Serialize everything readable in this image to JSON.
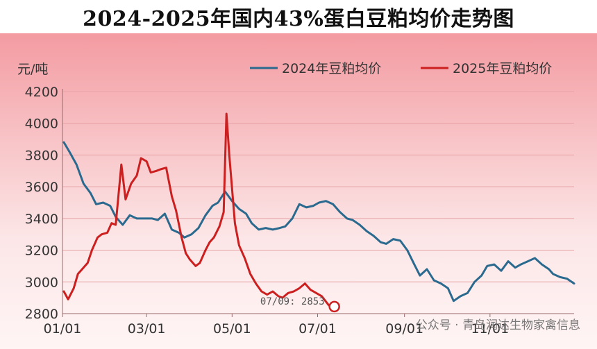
{
  "chart_data": {
    "type": "line",
    "title": "2024-2025年国内43%蛋白豆粕均价走势图",
    "ylabel": "元/吨",
    "ylim": [
      2800,
      4200
    ],
    "yticks": [
      2800,
      3000,
      3200,
      3400,
      3600,
      3800,
      4000,
      4200
    ],
    "xlabels": [
      "01/01",
      "03/01",
      "05/01",
      "07/01",
      "09/01",
      "11/01"
    ],
    "x_domain": [
      "01/01",
      "12/31"
    ],
    "grid": true,
    "legend_position": "top-right",
    "series": [
      {
        "name": "2024年豆粕均价",
        "color": "#2b6a8f",
        "points": [
          [
            "01/02",
            3880
          ],
          [
            "01/06",
            3820
          ],
          [
            "01/11",
            3740
          ],
          [
            "01/16",
            3620
          ],
          [
            "01/21",
            3560
          ],
          [
            "01/25",
            3490
          ],
          [
            "01/30",
            3500
          ],
          [
            "02/04",
            3480
          ],
          [
            "02/08",
            3410
          ],
          [
            "02/13",
            3360
          ],
          [
            "02/18",
            3420
          ],
          [
            "02/23",
            3400
          ],
          [
            "02/28",
            3400
          ],
          [
            "03/05",
            3400
          ],
          [
            "03/09",
            3390
          ],
          [
            "03/14",
            3430
          ],
          [
            "03/19",
            3330
          ],
          [
            "03/24",
            3310
          ],
          [
            "03/28",
            3280
          ],
          [
            "04/02",
            3300
          ],
          [
            "04/07",
            3340
          ],
          [
            "04/12",
            3420
          ],
          [
            "04/17",
            3480
          ],
          [
            "04/21",
            3500
          ],
          [
            "04/26",
            3570
          ],
          [
            "05/01",
            3510
          ],
          [
            "05/06",
            3460
          ],
          [
            "05/11",
            3430
          ],
          [
            "05/15",
            3370
          ],
          [
            "05/20",
            3330
          ],
          [
            "05/25",
            3340
          ],
          [
            "05/30",
            3330
          ],
          [
            "06/04",
            3340
          ],
          [
            "06/08",
            3350
          ],
          [
            "06/13",
            3400
          ],
          [
            "06/18",
            3490
          ],
          [
            "06/23",
            3470
          ],
          [
            "06/28",
            3480
          ],
          [
            "07/02",
            3500
          ],
          [
            "07/07",
            3510
          ],
          [
            "07/12",
            3490
          ],
          [
            "07/17",
            3440
          ],
          [
            "07/22",
            3400
          ],
          [
            "07/26",
            3390
          ],
          [
            "07/31",
            3360
          ],
          [
            "08/05",
            3320
          ],
          [
            "08/10",
            3290
          ],
          [
            "08/15",
            3250
          ],
          [
            "08/19",
            3240
          ],
          [
            "08/24",
            3270
          ],
          [
            "08/29",
            3260
          ],
          [
            "09/03",
            3200
          ],
          [
            "09/08",
            3110
          ],
          [
            "09/12",
            3040
          ],
          [
            "09/17",
            3080
          ],
          [
            "09/22",
            3010
          ],
          [
            "09/27",
            2990
          ],
          [
            "10/02",
            2960
          ],
          [
            "10/06",
            2880
          ],
          [
            "10/11",
            2910
          ],
          [
            "10/16",
            2930
          ],
          [
            "10/21",
            3000
          ],
          [
            "10/26",
            3040
          ],
          [
            "10/30",
            3100
          ],
          [
            "11/04",
            3110
          ],
          [
            "11/09",
            3070
          ],
          [
            "11/14",
            3130
          ],
          [
            "11/19",
            3090
          ],
          [
            "11/23",
            3110
          ],
          [
            "11/28",
            3130
          ],
          [
            "12/03",
            3150
          ],
          [
            "12/08",
            3110
          ],
          [
            "12/13",
            3080
          ],
          [
            "12/16",
            3050
          ],
          [
            "12/21",
            3030
          ],
          [
            "12/26",
            3020
          ],
          [
            "12/31",
            2990
          ]
        ]
      },
      {
        "name": "2025年豆粕均价",
        "color": "#cc1f1f",
        "points": [
          [
            "01/02",
            2940
          ],
          [
            "01/05",
            2890
          ],
          [
            "01/09",
            2960
          ],
          [
            "01/12",
            3050
          ],
          [
            "01/15",
            3080
          ],
          [
            "01/19",
            3120
          ],
          [
            "01/22",
            3200
          ],
          [
            "01/26",
            3280
          ],
          [
            "01/29",
            3300
          ],
          [
            "02/02",
            3310
          ],
          [
            "02/05",
            3370
          ],
          [
            "02/08",
            3360
          ],
          [
            "02/12",
            3740
          ],
          [
            "02/15",
            3520
          ],
          [
            "02/19",
            3620
          ],
          [
            "02/23",
            3670
          ],
          [
            "02/26",
            3780
          ],
          [
            "03/01",
            3760
          ],
          [
            "03/04",
            3690
          ],
          [
            "03/08",
            3700
          ],
          [
            "03/11",
            3710
          ],
          [
            "03/15",
            3720
          ],
          [
            "03/19",
            3540
          ],
          [
            "03/22",
            3450
          ],
          [
            "03/26",
            3280
          ],
          [
            "03/29",
            3180
          ],
          [
            "04/01",
            3140
          ],
          [
            "04/05",
            3100
          ],
          [
            "04/08",
            3120
          ],
          [
            "04/12",
            3200
          ],
          [
            "04/15",
            3250
          ],
          [
            "04/18",
            3280
          ],
          [
            "04/22",
            3350
          ],
          [
            "04/25",
            3440
          ],
          [
            "04/27",
            4060
          ],
          [
            "04/29",
            3800
          ],
          [
            "05/03",
            3370
          ],
          [
            "05/06",
            3230
          ],
          [
            "05/10",
            3150
          ],
          [
            "05/14",
            3050
          ],
          [
            "05/18",
            2990
          ],
          [
            "05/22",
            2940
          ],
          [
            "05/26",
            2920
          ],
          [
            "05/30",
            2940
          ],
          [
            "06/03",
            2910
          ],
          [
            "06/06",
            2900
          ],
          [
            "06/10",
            2930
          ],
          [
            "06/14",
            2940
          ],
          [
            "06/18",
            2960
          ],
          [
            "06/22",
            2990
          ],
          [
            "06/26",
            2950
          ],
          [
            "06/30",
            2930
          ],
          [
            "07/04",
            2910
          ],
          [
            "07/09",
            2853
          ]
        ]
      }
    ],
    "annotation": {
      "series": "2025年豆粕均价",
      "date": "07/09",
      "value": 2853,
      "text": "07/09: 2853"
    }
  },
  "watermark": "公众号 · 青岛润达生物家禽信息"
}
